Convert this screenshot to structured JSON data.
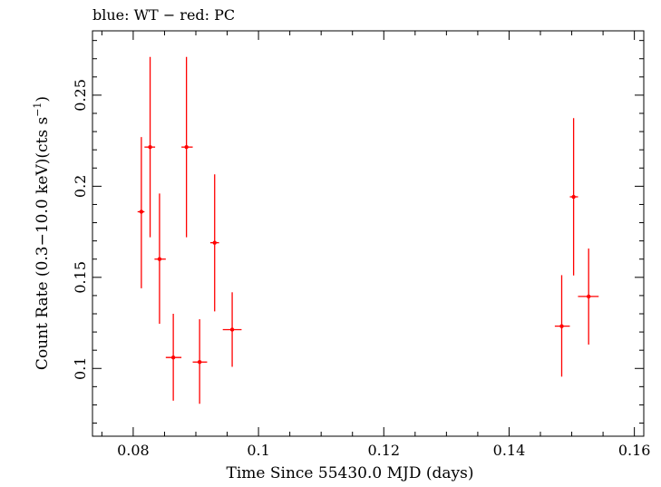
{
  "chart_data": {
    "type": "scatter",
    "title": "blue: WT − red: PC",
    "xlabel": "Time Since 55430.0 MJD (days)",
    "ylabel_main": "Count Rate (0.3−10.0 keV)(cts s",
    "ylabel_sup": "−1",
    "ylabel_end": ")",
    "xlim": [
      0.0735,
      0.1615
    ],
    "ylim": [
      0.0628,
      0.2853
    ],
    "xticks": [
      {
        "value": 0.08,
        "label": "0.08"
      },
      {
        "value": 0.1,
        "label": "0.1"
      },
      {
        "value": 0.12,
        "label": "0.12"
      },
      {
        "value": 0.14,
        "label": "0.14"
      },
      {
        "value": 0.16,
        "label": "0.16"
      }
    ],
    "yticks": [
      {
        "value": 0.1,
        "label": "0.1"
      },
      {
        "value": 0.15,
        "label": "0.15"
      },
      {
        "value": 0.2,
        "label": "0.2"
      },
      {
        "value": 0.25,
        "label": "0.25"
      }
    ],
    "x_minor_step": 0.005,
    "y_minor_step": 0.01,
    "grid": false,
    "series": [
      {
        "color": "#ff0000",
        "points": [
          {
            "x": 0.0813,
            "xlo": 0.0807,
            "xhi": 0.0818,
            "y": 0.186,
            "ylo": 0.144,
            "yhi": 0.227
          },
          {
            "x": 0.0827,
            "xlo": 0.0818,
            "xhi": 0.0835,
            "y": 0.2215,
            "ylo": 0.172,
            "yhi": 0.271
          },
          {
            "x": 0.0842,
            "xlo": 0.0834,
            "xhi": 0.0852,
            "y": 0.16,
            "ylo": 0.1245,
            "yhi": 0.196
          },
          {
            "x": 0.0864,
            "xlo": 0.0852,
            "xhi": 0.0877,
            "y": 0.106,
            "ylo": 0.0823,
            "yhi": 0.13
          },
          {
            "x": 0.0885,
            "xlo": 0.0877,
            "xhi": 0.0895,
            "y": 0.2215,
            "ylo": 0.172,
            "yhi": 0.271
          },
          {
            "x": 0.0906,
            "xlo": 0.0895,
            "xhi": 0.0918,
            "y": 0.1035,
            "ylo": 0.0806,
            "yhi": 0.127
          },
          {
            "x": 0.093,
            "xlo": 0.0923,
            "xhi": 0.0937,
            "y": 0.169,
            "ylo": 0.1313,
            "yhi": 0.2065
          },
          {
            "x": 0.0958,
            "xlo": 0.0943,
            "xhi": 0.0973,
            "y": 0.1213,
            "ylo": 0.1009,
            "yhi": 0.1418
          },
          {
            "x": 0.1484,
            "xlo": 0.1473,
            "xhi": 0.1497,
            "y": 0.1232,
            "ylo": 0.0955,
            "yhi": 0.1512
          },
          {
            "x": 0.1503,
            "xlo": 0.1497,
            "xhi": 0.151,
            "y": 0.1942,
            "ylo": 0.151,
            "yhi": 0.2374
          },
          {
            "x": 0.1527,
            "xlo": 0.151,
            "xhi": 0.1543,
            "y": 0.1395,
            "ylo": 0.1131,
            "yhi": 0.1658
          }
        ]
      }
    ]
  }
}
